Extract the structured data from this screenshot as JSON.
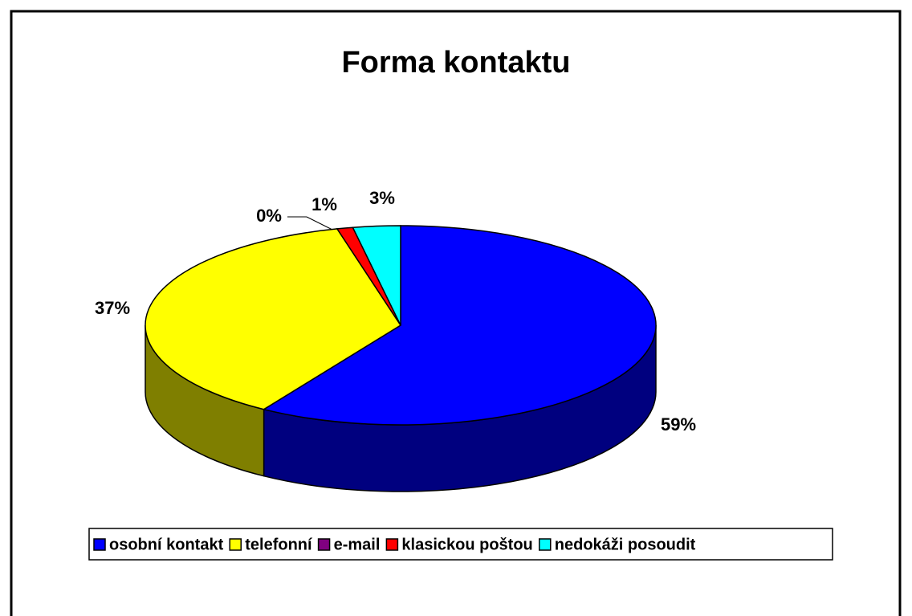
{
  "chart_data": {
    "type": "pie",
    "title": "Forma kontaktu",
    "categories": [
      "osobní kontakt",
      "telefonní",
      "e-mail",
      "klasickou poštou",
      "nedokáži posoudit"
    ],
    "values": [
      59,
      37,
      0,
      1,
      3
    ],
    "value_labels": [
      "59%",
      "37%",
      "0%",
      "1%",
      "3%"
    ],
    "colors": [
      "#0000ff",
      "#ffff00",
      "#800080",
      "#ff0000",
      "#00ffff"
    ],
    "legend": "bottom"
  }
}
